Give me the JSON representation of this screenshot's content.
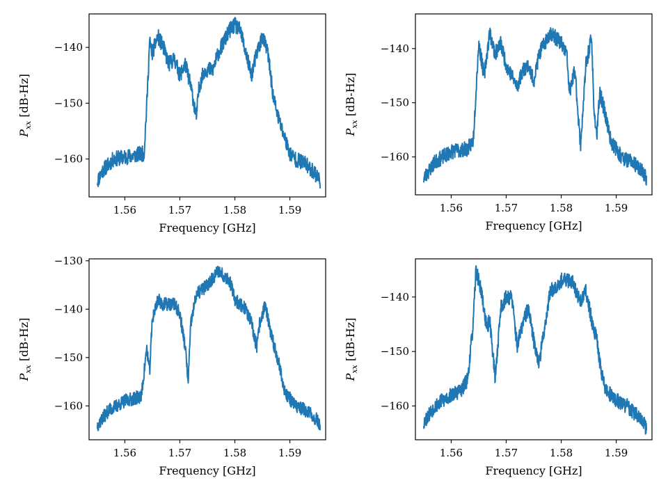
{
  "figure": {
    "line_color": "#1f77b4"
  },
  "chart_data": [
    {
      "id": "tl",
      "type": "line",
      "title": "",
      "xlabel": "Frequency [GHz]",
      "ylabel_main": "P",
      "ylabel_sub": "xx",
      "ylabel_unit": " [dB-Hz]",
      "xlim": [
        1.5535,
        1.5965
      ],
      "ylim": [
        -166.8,
        -134.0
      ],
      "xticks": [
        1.56,
        1.57,
        1.58,
        1.59
      ],
      "xtick_labels": [
        "1.56",
        "1.57",
        "1.58",
        "1.59"
      ],
      "yticks": [
        -140,
        -150,
        -160
      ],
      "ytick_labels": [
        "−140",
        "−150",
        "−160"
      ],
      "noise": 1.4,
      "seed": 11,
      "series": [
        {
          "name": "Pxx",
          "x": [
            1.555,
            1.556,
            1.558,
            1.561,
            1.5635,
            1.564,
            1.5645,
            1.565,
            1.566,
            1.567,
            1.568,
            1.569,
            1.57,
            1.571,
            1.572,
            1.573,
            1.5735,
            1.5745,
            1.576,
            1.577,
            1.579,
            1.58,
            1.581,
            1.582,
            1.583,
            1.584,
            1.585,
            1.586,
            1.587,
            1.588,
            1.589,
            1.59,
            1.591,
            1.593,
            1.595,
            1.5955
          ],
          "y": [
            -164,
            -162,
            -160,
            -159.5,
            -159,
            -150,
            -139,
            -141,
            -138,
            -140,
            -143,
            -142,
            -145,
            -143,
            -147,
            -152.5,
            -147,
            -144,
            -144,
            -141,
            -137,
            -136,
            -137,
            -141,
            -145,
            -141,
            -138,
            -141,
            -149,
            -153,
            -156,
            -159,
            -160,
            -161,
            -163,
            -164
          ]
        }
      ]
    },
    {
      "id": "tr",
      "type": "line",
      "title": "",
      "xlabel": "Frequency [GHz]",
      "ylabel_main": "P",
      "ylabel_sub": "xx",
      "ylabel_unit": " [dB-Hz]",
      "xlim": [
        1.5535,
        1.5965
      ],
      "ylim": [
        -167.0,
        -133.6
      ],
      "xticks": [
        1.56,
        1.57,
        1.58,
        1.59
      ],
      "xtick_labels": [
        "1.56",
        "1.57",
        "1.58",
        "1.59"
      ],
      "yticks": [
        -140,
        -150,
        -160
      ],
      "ytick_labels": [
        "−140",
        "−150",
        "−160"
      ],
      "noise": 1.4,
      "seed": 23,
      "series": [
        {
          "name": "Pxx",
          "x": [
            1.555,
            1.557,
            1.56,
            1.563,
            1.564,
            1.5645,
            1.565,
            1.566,
            1.567,
            1.568,
            1.569,
            1.57,
            1.571,
            1.572,
            1.573,
            1.574,
            1.575,
            1.576,
            1.578,
            1.58,
            1.581,
            1.5815,
            1.5825,
            1.5835,
            1.5845,
            1.5855,
            1.586,
            1.5865,
            1.587,
            1.588,
            1.589,
            1.591,
            1.593,
            1.595,
            1.5955
          ],
          "y": [
            -164,
            -161,
            -159,
            -158.5,
            -157,
            -148,
            -139,
            -145,
            -137,
            -141,
            -139,
            -143,
            -145,
            -147,
            -144,
            -143,
            -146,
            -141,
            -137,
            -139,
            -141,
            -148,
            -144,
            -158,
            -143,
            -138,
            -152,
            -156,
            -148,
            -152,
            -157,
            -160,
            -161,
            -163,
            -164
          ]
        }
      ]
    },
    {
      "id": "bl",
      "type": "line",
      "title": "",
      "xlabel": "Frequency [GHz]",
      "ylabel_main": "P",
      "ylabel_sub": "xx",
      "ylabel_unit": " [dB-Hz]",
      "xlim": [
        1.5535,
        1.5965
      ],
      "ylim": [
        -167.0,
        -129.6
      ],
      "xticks": [
        1.56,
        1.57,
        1.58,
        1.59
      ],
      "xtick_labels": [
        "1.56",
        "1.57",
        "1.58",
        "1.59"
      ],
      "yticks": [
        -130,
        -140,
        -150,
        -160
      ],
      "ytick_labels": [
        "−130",
        "−140",
        "−150",
        "−160"
      ],
      "noise": 1.4,
      "seed": 37,
      "series": [
        {
          "name": "Pxx",
          "x": [
            1.555,
            1.557,
            1.56,
            1.563,
            1.5635,
            1.564,
            1.5645,
            1.565,
            1.566,
            1.567,
            1.569,
            1.57,
            1.571,
            1.5715,
            1.572,
            1.573,
            1.575,
            1.577,
            1.578,
            1.579,
            1.58,
            1.582,
            1.583,
            1.584,
            1.5845,
            1.5855,
            1.5865,
            1.588,
            1.589,
            1.591,
            1.593,
            1.595,
            1.5955
          ],
          "y": [
            -164,
            -161,
            -159,
            -158,
            -153,
            -148,
            -153,
            -142,
            -138,
            -139,
            -139,
            -141,
            -148,
            -155,
            -143,
            -137,
            -135,
            -132,
            -133,
            -134,
            -138,
            -140,
            -143,
            -148,
            -143,
            -139,
            -145,
            -151,
            -157,
            -160,
            -161,
            -163,
            -164
          ]
        }
      ]
    },
    {
      "id": "br",
      "type": "line",
      "title": "",
      "xlabel": "Frequency [GHz]",
      "ylabel_main": "P",
      "ylabel_sub": "xx",
      "ylabel_unit": " [dB-Hz]",
      "xlim": [
        1.5535,
        1.5965
      ],
      "ylim": [
        -166.2,
        -133.0
      ],
      "xticks": [
        1.56,
        1.57,
        1.58,
        1.59
      ],
      "xtick_labels": [
        "1.56",
        "1.57",
        "1.58",
        "1.59"
      ],
      "yticks": [
        -140,
        -150,
        -160
      ],
      "ytick_labels": [
        "−140",
        "−150",
        "−160"
      ],
      "noise": 1.4,
      "seed": 53,
      "series": [
        {
          "name": "Pxx",
          "x": [
            1.555,
            1.557,
            1.56,
            1.562,
            1.563,
            1.564,
            1.5645,
            1.5655,
            1.5665,
            1.567,
            1.568,
            1.569,
            1.57,
            1.571,
            1.572,
            1.573,
            1.574,
            1.575,
            1.576,
            1.578,
            1.58,
            1.582,
            1.5835,
            1.5845,
            1.5855,
            1.5865,
            1.587,
            1.588,
            1.59,
            1.592,
            1.594,
            1.5955
          ],
          "y": [
            -163,
            -160,
            -158,
            -157,
            -155,
            -145,
            -135,
            -139,
            -146,
            -144,
            -155,
            -142,
            -140,
            -140,
            -149,
            -145,
            -142,
            -148,
            -152,
            -139,
            -137,
            -137,
            -141,
            -139,
            -144,
            -148,
            -152,
            -157,
            -159,
            -160,
            -162,
            -164
          ]
        }
      ]
    }
  ]
}
